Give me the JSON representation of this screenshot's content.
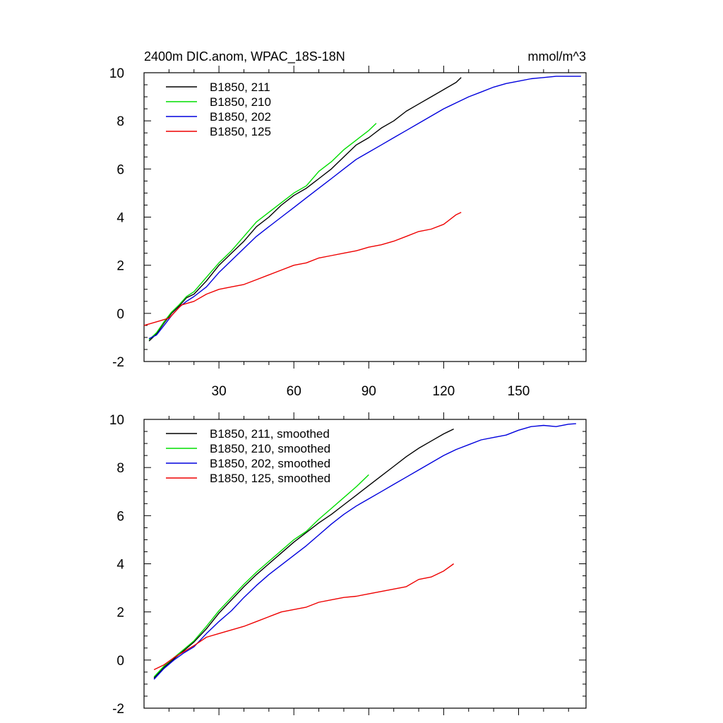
{
  "chart_data": [
    {
      "type": "line",
      "title": "2400m DIC.anom, WPAC_18S-18N",
      "units": "mmol/m^3",
      "xlim": [
        0,
        177
      ],
      "ylim": [
        -2,
        10
      ],
      "xticks": [
        30,
        60,
        90,
        120,
        150
      ],
      "yticks": [
        -2,
        0,
        2,
        4,
        6,
        8,
        10
      ],
      "legend": "top-left",
      "grid": false,
      "series": [
        {
          "name": "B1850, 211",
          "color": "#000000",
          "x": [
            2,
            5,
            8,
            11,
            14,
            17,
            20,
            25,
            30,
            35,
            40,
            45,
            50,
            55,
            60,
            65,
            70,
            75,
            80,
            85,
            90,
            95,
            100,
            105,
            110,
            115,
            120,
            125,
            127
          ],
          "y": [
            -1.15,
            -0.85,
            -0.4,
            0.0,
            0.3,
            0.65,
            0.8,
            1.35,
            2.0,
            2.5,
            3.0,
            3.6,
            4.0,
            4.5,
            4.9,
            5.2,
            5.6,
            6.0,
            6.5,
            7.0,
            7.3,
            7.7,
            8.0,
            8.4,
            8.7,
            9.0,
            9.3,
            9.6,
            9.8
          ]
        },
        {
          "name": "B1850, 210",
          "color": "#00dd00",
          "x": [
            2,
            5,
            8,
            11,
            14,
            17,
            20,
            25,
            30,
            35,
            40,
            45,
            50,
            55,
            60,
            65,
            70,
            75,
            80,
            85,
            90,
            93
          ],
          "y": [
            -1.1,
            -0.8,
            -0.35,
            0.05,
            0.35,
            0.7,
            0.9,
            1.5,
            2.1,
            2.6,
            3.2,
            3.8,
            4.2,
            4.6,
            5.0,
            5.3,
            5.9,
            6.3,
            6.8,
            7.2,
            7.6,
            7.9
          ]
        },
        {
          "name": "B1850, 202",
          "color": "#0000dd",
          "x": [
            2,
            5,
            8,
            11,
            14,
            17,
            20,
            25,
            30,
            35,
            40,
            45,
            50,
            55,
            60,
            65,
            70,
            75,
            80,
            85,
            90,
            95,
            100,
            105,
            110,
            115,
            120,
            125,
            130,
            135,
            140,
            145,
            150,
            155,
            160,
            165,
            170,
            175
          ],
          "y": [
            -1.05,
            -0.9,
            -0.5,
            -0.1,
            0.25,
            0.5,
            0.7,
            1.1,
            1.7,
            2.2,
            2.7,
            3.2,
            3.6,
            4.0,
            4.4,
            4.8,
            5.2,
            5.6,
            6.0,
            6.4,
            6.7,
            7.0,
            7.3,
            7.6,
            7.9,
            8.2,
            8.5,
            8.75,
            9.0,
            9.2,
            9.4,
            9.55,
            9.65,
            9.75,
            9.8,
            9.85,
            9.85,
            9.85
          ]
        },
        {
          "name": "B1850, 125",
          "color": "#ee0000",
          "x": [
            0,
            5,
            10,
            15,
            20,
            25,
            30,
            35,
            40,
            45,
            50,
            55,
            60,
            65,
            70,
            75,
            80,
            85,
            90,
            95,
            100,
            105,
            110,
            115,
            120,
            125,
            127
          ],
          "y": [
            -0.5,
            -0.35,
            -0.2,
            0.35,
            0.5,
            0.8,
            1.0,
            1.1,
            1.2,
            1.4,
            1.6,
            1.8,
            2.0,
            2.1,
            2.3,
            2.4,
            2.5,
            2.6,
            2.75,
            2.85,
            3.0,
            3.2,
            3.4,
            3.5,
            3.7,
            4.1,
            4.2
          ]
        }
      ]
    },
    {
      "type": "line",
      "title": "",
      "xlim": [
        0,
        177
      ],
      "ylim": [
        -2,
        10
      ],
      "yticks": [
        -2,
        0,
        2,
        4,
        6,
        8,
        10
      ],
      "xticks_unlabeled": [
        30,
        60,
        90,
        120,
        150
      ],
      "legend": "top-left",
      "grid": false,
      "series": [
        {
          "name": "B1850, 211, smoothed",
          "color": "#000000",
          "x": [
            4,
            8,
            12,
            16,
            20,
            25,
            30,
            35,
            40,
            45,
            50,
            55,
            60,
            65,
            70,
            75,
            80,
            85,
            90,
            95,
            100,
            105,
            110,
            115,
            120,
            124
          ],
          "y": [
            -0.75,
            -0.3,
            0.05,
            0.4,
            0.75,
            1.3,
            1.95,
            2.5,
            3.05,
            3.55,
            4.0,
            4.45,
            4.9,
            5.3,
            5.7,
            6.05,
            6.45,
            6.85,
            7.25,
            7.65,
            8.05,
            8.45,
            8.8,
            9.1,
            9.4,
            9.6
          ]
        },
        {
          "name": "B1850, 210, smoothed",
          "color": "#00dd00",
          "x": [
            4,
            8,
            12,
            16,
            20,
            25,
            30,
            35,
            40,
            45,
            50,
            55,
            60,
            65,
            70,
            75,
            80,
            85,
            90
          ],
          "y": [
            -0.7,
            -0.25,
            0.1,
            0.45,
            0.8,
            1.4,
            2.05,
            2.6,
            3.15,
            3.65,
            4.1,
            4.55,
            5.0,
            5.35,
            5.85,
            6.3,
            6.75,
            7.2,
            7.7
          ]
        },
        {
          "name": "B1850, 202, smoothed",
          "color": "#0000dd",
          "x": [
            4,
            8,
            12,
            16,
            20,
            25,
            30,
            35,
            40,
            45,
            50,
            55,
            60,
            65,
            70,
            75,
            80,
            85,
            90,
            95,
            100,
            105,
            110,
            115,
            120,
            125,
            130,
            135,
            140,
            145,
            150,
            155,
            160,
            165,
            170,
            173
          ],
          "y": [
            -0.8,
            -0.35,
            0.0,
            0.3,
            0.55,
            1.1,
            1.6,
            2.05,
            2.6,
            3.1,
            3.55,
            3.95,
            4.35,
            4.75,
            5.2,
            5.65,
            6.05,
            6.4,
            6.7,
            7.0,
            7.3,
            7.6,
            7.9,
            8.2,
            8.5,
            8.75,
            8.95,
            9.15,
            9.25,
            9.35,
            9.55,
            9.7,
            9.75,
            9.7,
            9.8,
            9.82
          ]
        },
        {
          "name": "B1850, 125, smoothed",
          "color": "#ee0000",
          "x": [
            4,
            8,
            12,
            16,
            20,
            25,
            30,
            35,
            40,
            45,
            50,
            55,
            60,
            65,
            70,
            75,
            80,
            85,
            90,
            95,
            100,
            105,
            110,
            115,
            120,
            124
          ],
          "y": [
            -0.4,
            -0.2,
            0.1,
            0.35,
            0.6,
            0.95,
            1.1,
            1.25,
            1.4,
            1.6,
            1.8,
            2.0,
            2.1,
            2.2,
            2.4,
            2.5,
            2.6,
            2.65,
            2.75,
            2.85,
            2.95,
            3.05,
            3.35,
            3.45,
            3.7,
            4.0
          ]
        }
      ]
    }
  ]
}
